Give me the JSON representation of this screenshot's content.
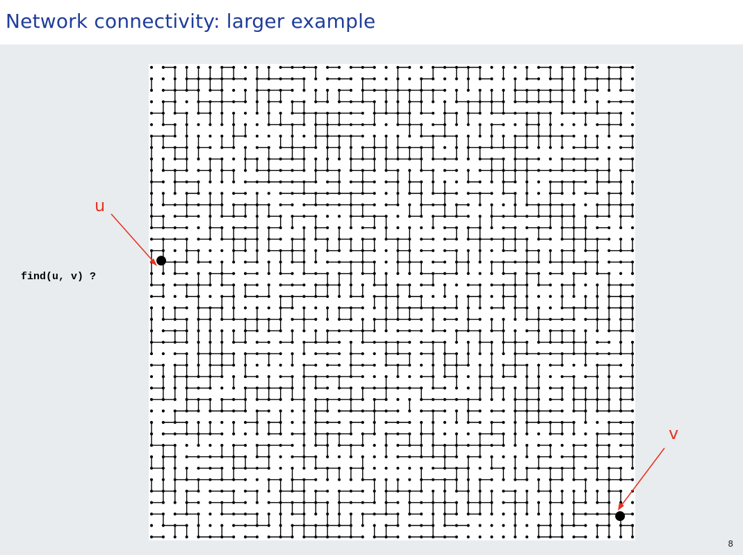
{
  "title": "Network connectivity: larger example",
  "query": "find(u, v) ?",
  "labels": {
    "u": "u",
    "v": "v"
  },
  "page_number": "8",
  "colors": {
    "title": "#1f3d99",
    "accent": "#e8321e",
    "background": "#e8ecef",
    "panel": "#ffffff",
    "ink": "#000000"
  },
  "grid": {
    "rows": 42,
    "cols": 42,
    "u": [
      0,
      17
    ],
    "v": [
      40,
      39
    ],
    "seed": 8
  }
}
